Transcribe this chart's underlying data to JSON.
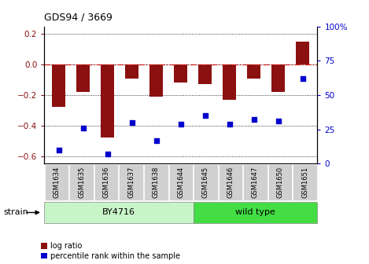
{
  "title": "GDS94 / 3669",
  "samples": [
    "GSM1634",
    "GSM1635",
    "GSM1636",
    "GSM1637",
    "GSM1638",
    "GSM1644",
    "GSM1645",
    "GSM1646",
    "GSM1647",
    "GSM1650",
    "GSM1651"
  ],
  "log_ratio": [
    -0.28,
    -0.18,
    -0.48,
    -0.09,
    -0.21,
    -0.12,
    -0.13,
    -0.23,
    -0.09,
    -0.18,
    0.15
  ],
  "percentile_rank": [
    10,
    26,
    7,
    30,
    17,
    29,
    35,
    29,
    32,
    31,
    62
  ],
  "group_by4716": {
    "label": "BY4716",
    "indices": [
      0,
      1,
      2,
      3,
      4,
      5
    ],
    "color_light": "#c8f5c8",
    "color_dark": "#4ccc4c"
  },
  "group_wildtype": {
    "label": "wild type",
    "indices": [
      6,
      7,
      8,
      9,
      10
    ],
    "color_light": "#4ccc4c",
    "color_dark": "#4ccc4c"
  },
  "bar_color": "#8b1010",
  "dot_color": "#0000cc",
  "zero_line_color": "#cc2222",
  "ylim_left": [
    -0.65,
    0.25
  ],
  "ylim_right": [
    0,
    100
  ],
  "yticks_left": [
    -0.6,
    -0.4,
    -0.2,
    0.0,
    0.2
  ],
  "yticks_right": [
    0,
    25,
    50,
    75,
    100
  ],
  "legend_red_label": "log ratio",
  "legend_blue_label": "percentile rank within the sample",
  "strain_label": "strain"
}
